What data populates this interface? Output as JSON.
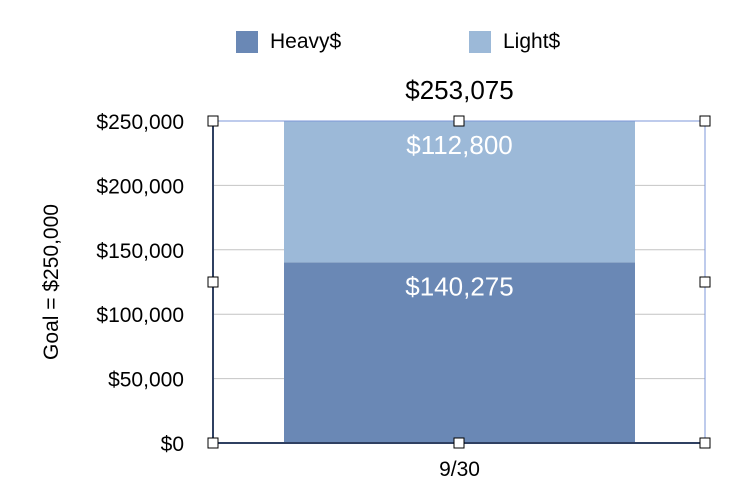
{
  "chart_data": {
    "type": "bar",
    "stacked": true,
    "categories": [
      "9/30"
    ],
    "series": [
      {
        "name": "Heavy$",
        "values": [
          140275
        ],
        "color": "#6a88b5",
        "data_label": "$140,275"
      },
      {
        "name": "Light$",
        "values": [
          112800
        ],
        "color": "#9cb9d8",
        "data_label": "$112,800"
      }
    ],
    "total_label": "$253,075",
    "ylabel": "Goal = $250,000",
    "xlabel": "",
    "ylim": [
      0,
      250000
    ],
    "yticks": [
      0,
      50000,
      100000,
      150000,
      200000,
      250000
    ],
    "ytick_labels": [
      "$0",
      "$50,000",
      "$100,000",
      "$150,000",
      "$200,000",
      "$250,000"
    ],
    "grid": true,
    "legend_position": "top"
  },
  "legend": {
    "items": [
      {
        "label": "Heavy$",
        "color": "#6a88b5"
      },
      {
        "label": "Light$",
        "color": "#9cb9d8"
      }
    ]
  }
}
